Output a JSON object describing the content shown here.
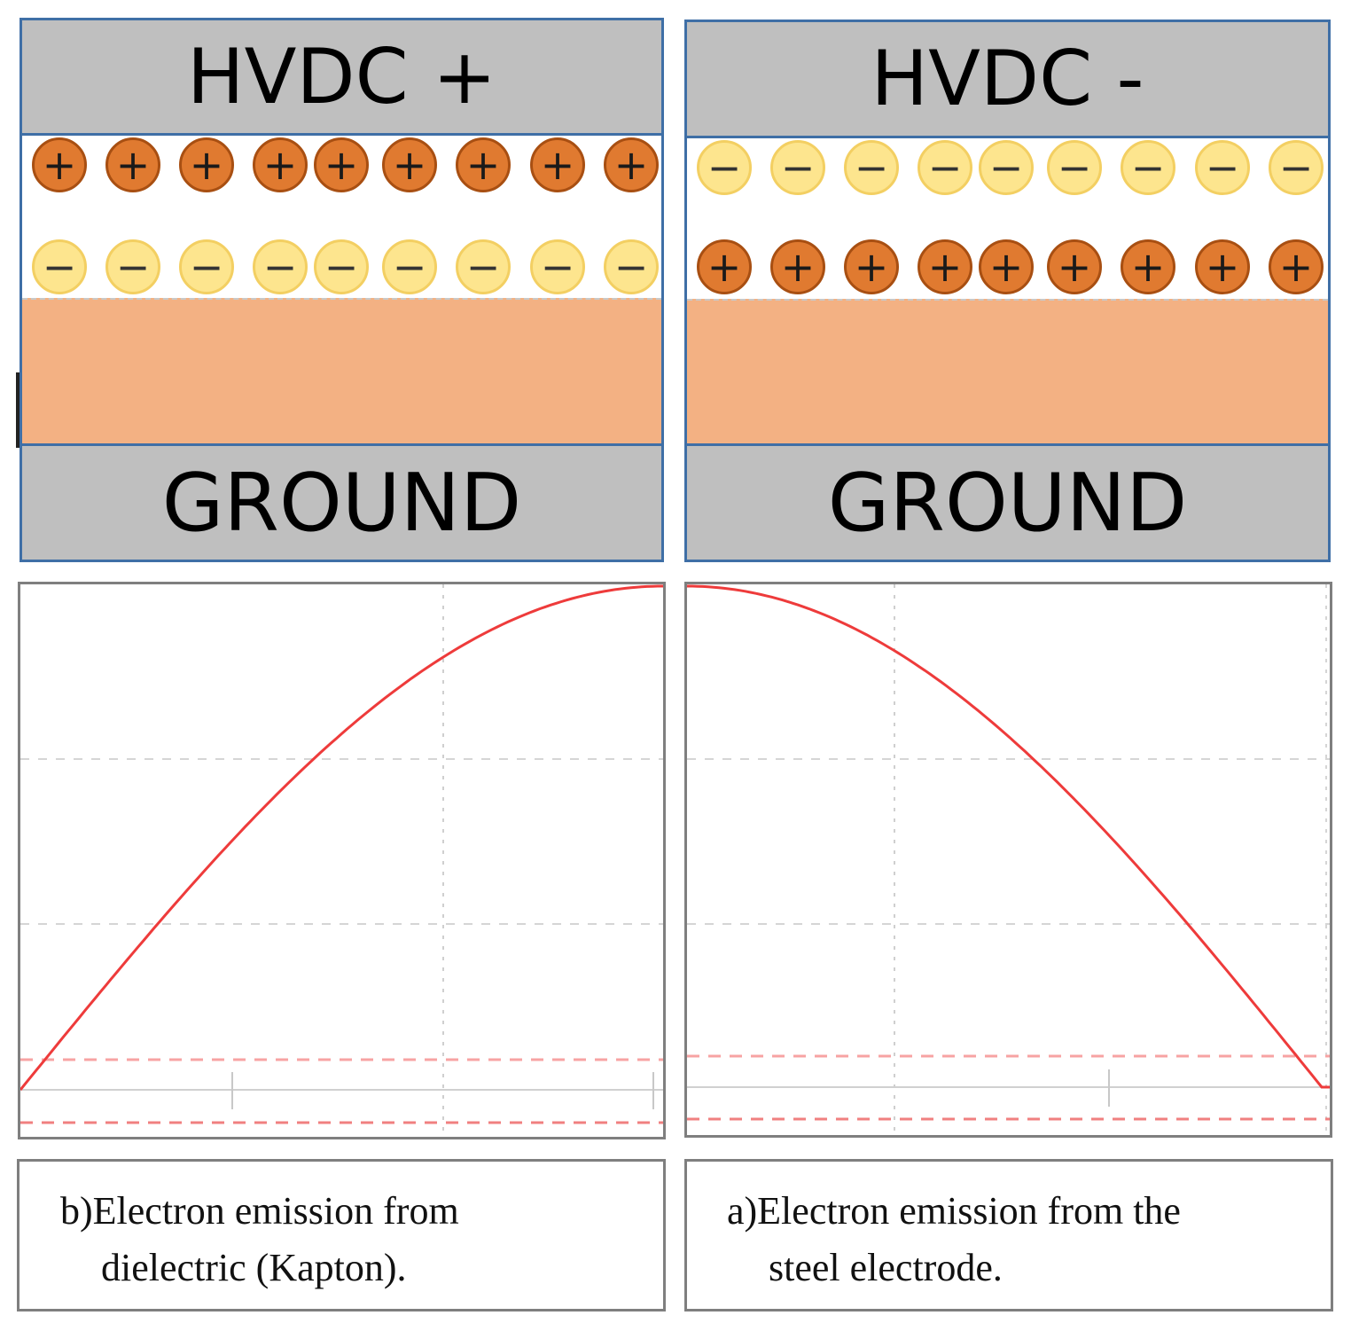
{
  "panels": [
    {
      "id": "positive",
      "top_label": "HVDC +",
      "bottom_label": "GROUND",
      "upper_row_sign": "+",
      "lower_row_sign": "−",
      "charges_per_row": 9
    },
    {
      "id": "negative",
      "top_label": "HVDC -",
      "bottom_label": "GROUND",
      "upper_row_sign": "−",
      "lower_row_sign": "+",
      "charges_per_row": 9
    }
  ],
  "plots": [
    {
      "id": "left",
      "curve": "rising",
      "trace_color": "#ee3b3b"
    },
    {
      "id": "right",
      "curve": "falling",
      "trace_color": "#ee3b3b"
    }
  ],
  "captions": [
    {
      "id": "b",
      "line1": "b)Electron emission from",
      "line2": "dielectric (Kapton)."
    },
    {
      "id": "a",
      "line1": "a)Electron emission from the",
      "line2": "steel electrode."
    }
  ],
  "colors": {
    "positive_charge": "#e07a30",
    "negative_charge": "#fde58e",
    "electrode": "#bfbfbf",
    "dielectric": "#f3b183",
    "panel_border": "#3f6fa6"
  }
}
